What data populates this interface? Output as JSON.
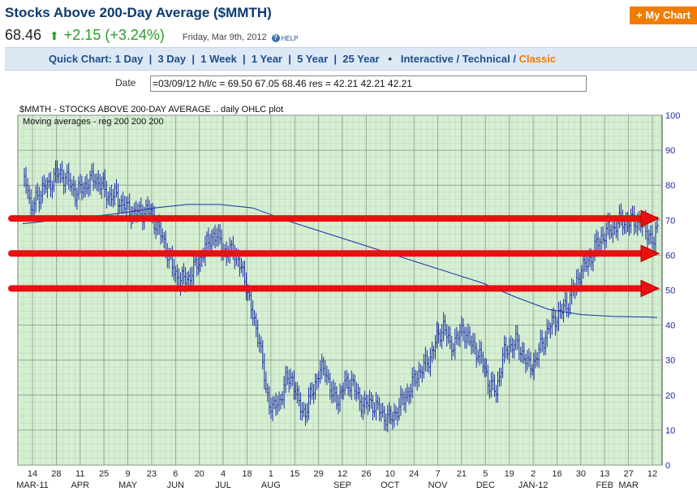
{
  "header": {
    "title": "Stocks Above 200-Day Average ($MMTH)",
    "my_chart": "+ My Chart",
    "last": "68.46",
    "change": "+2.15 (+3.24%)",
    "date": "Friday, Mar 9th, 2012",
    "help": "HELP"
  },
  "quick_chart": {
    "label": "Quick Chart:",
    "links": [
      "1 Day",
      "3 Day",
      "1 Week",
      "1 Year",
      "5 Year",
      "25 Year"
    ],
    "interactive": "Interactive",
    "technical": "Technical",
    "classic": "Classic"
  },
  "datebar": {
    "label": "Date",
    "value": "=03/09/12 h/l/c = 69.50 67.05 68.46 res = 42.21 42.21 42.21"
  },
  "colors": {
    "plot_bg": "#d7efd3",
    "grid": "#8a9a8a",
    "ohlc": "#1a2ea8",
    "ma": "#1a2ea8",
    "arrow": "#e81010",
    "axis_text": "#1c2a9c"
  },
  "chart_data": {
    "type": "ohlc",
    "title": "$MMTH - STOCKS ABOVE 200-DAY AVERAGE .. daily OHLC plot",
    "subtitle": "Moving averages - reg 200 200 200",
    "ylim": [
      0,
      100
    ],
    "yticks": [
      0,
      10,
      20,
      30,
      40,
      50,
      60,
      70,
      80,
      90,
      100
    ],
    "day_ticks": [
      "14",
      "28",
      "11",
      "25",
      "9",
      "23",
      "6",
      "20",
      "4",
      "18",
      "1",
      "15",
      "29",
      "12",
      "26",
      "10",
      "24",
      "7",
      "21",
      "5",
      "19",
      "2",
      "16",
      "30",
      "13",
      "27",
      "12"
    ],
    "month_labels": [
      {
        "label": "MAR-11",
        "at": "14"
      },
      {
        "label": "APR",
        "at": "11"
      },
      {
        "label": "MAY",
        "at": "9"
      },
      {
        "label": "JUN",
        "at": "6"
      },
      {
        "label": "JUL",
        "at": "4"
      },
      {
        "label": "AUG",
        "at": "1"
      },
      {
        "label": "SEP",
        "at": "12"
      },
      {
        "label": "OCT",
        "at": "10"
      },
      {
        "label": "NOV",
        "at": "7"
      },
      {
        "label": "DEC",
        "at": "5"
      },
      {
        "label": "JAN-12",
        "at": "2"
      },
      {
        "label": "FEB",
        "at": "13"
      },
      {
        "label": "MAR",
        "at": "27"
      }
    ],
    "close_series": [
      [
        0,
        80
      ],
      [
        3,
        81
      ],
      [
        5,
        72
      ],
      [
        8,
        76
      ],
      [
        12,
        79
      ],
      [
        16,
        80
      ],
      [
        20,
        83
      ],
      [
        24,
        83
      ],
      [
        28,
        81
      ],
      [
        32,
        78
      ],
      [
        36,
        79
      ],
      [
        40,
        81
      ],
      [
        44,
        82
      ],
      [
        48,
        80
      ],
      [
        52,
        77
      ],
      [
        56,
        77
      ],
      [
        60,
        75
      ],
      [
        64,
        73
      ],
      [
        68,
        72
      ],
      [
        72,
        72
      ],
      [
        76,
        73
      ],
      [
        80,
        70
      ],
      [
        84,
        66
      ],
      [
        88,
        61
      ],
      [
        92,
        55
      ],
      [
        96,
        53
      ],
      [
        100,
        53
      ],
      [
        104,
        56
      ],
      [
        108,
        59
      ],
      [
        112,
        63
      ],
      [
        116,
        66
      ],
      [
        120,
        64
      ],
      [
        124,
        60
      ],
      [
        128,
        62
      ],
      [
        132,
        57
      ],
      [
        136,
        52
      ],
      [
        140,
        42
      ],
      [
        144,
        36
      ],
      [
        148,
        21
      ],
      [
        152,
        16
      ],
      [
        156,
        18
      ],
      [
        160,
        24
      ],
      [
        164,
        25
      ],
      [
        168,
        17
      ],
      [
        172,
        15
      ],
      [
        176,
        21
      ],
      [
        180,
        26
      ],
      [
        184,
        28
      ],
      [
        188,
        20
      ],
      [
        192,
        19
      ],
      [
        196,
        23
      ],
      [
        200,
        24
      ],
      [
        204,
        19
      ],
      [
        208,
        17
      ],
      [
        212,
        18
      ],
      [
        216,
        16
      ],
      [
        220,
        14
      ],
      [
        224,
        13
      ],
      [
        228,
        16
      ],
      [
        232,
        19
      ],
      [
        236,
        22
      ],
      [
        240,
        26
      ],
      [
        244,
        28
      ],
      [
        248,
        31
      ],
      [
        252,
        36
      ],
      [
        256,
        40
      ],
      [
        260,
        34
      ],
      [
        264,
        36
      ],
      [
        268,
        39
      ],
      [
        272,
        35
      ],
      [
        276,
        33
      ],
      [
        280,
        29
      ],
      [
        284,
        23
      ],
      [
        288,
        21
      ],
      [
        292,
        31
      ],
      [
        296,
        34
      ],
      [
        300,
        35
      ],
      [
        304,
        32
      ],
      [
        308,
        28
      ],
      [
        312,
        30
      ],
      [
        316,
        35
      ],
      [
        320,
        39
      ],
      [
        324,
        42
      ],
      [
        328,
        44
      ],
      [
        332,
        47
      ],
      [
        336,
        51
      ],
      [
        340,
        56
      ],
      [
        344,
        58
      ],
      [
        348,
        62
      ],
      [
        352,
        65
      ],
      [
        356,
        67
      ],
      [
        360,
        68
      ],
      [
        364,
        70
      ],
      [
        368,
        69
      ],
      [
        372,
        70
      ],
      [
        376,
        69
      ],
      [
        380,
        67
      ],
      [
        384,
        63
      ],
      [
        386,
        68.46
      ]
    ],
    "moving_average": [
      [
        0,
        69
      ],
      [
        20,
        70
      ],
      [
        40,
        71
      ],
      [
        60,
        72
      ],
      [
        80,
        73.5
      ],
      [
        100,
        74.5
      ],
      [
        120,
        74.5
      ],
      [
        140,
        73.5
      ],
      [
        160,
        70
      ],
      [
        180,
        67
      ],
      [
        200,
        64
      ],
      [
        220,
        61
      ],
      [
        240,
        58
      ],
      [
        260,
        55
      ],
      [
        280,
        52
      ],
      [
        300,
        48
      ],
      [
        320,
        44.5
      ],
      [
        340,
        43
      ],
      [
        360,
        42.5
      ],
      [
        380,
        42.3
      ],
      [
        386,
        42.21
      ]
    ],
    "arrows": [
      70.5,
      60.5,
      50.5
    ]
  }
}
